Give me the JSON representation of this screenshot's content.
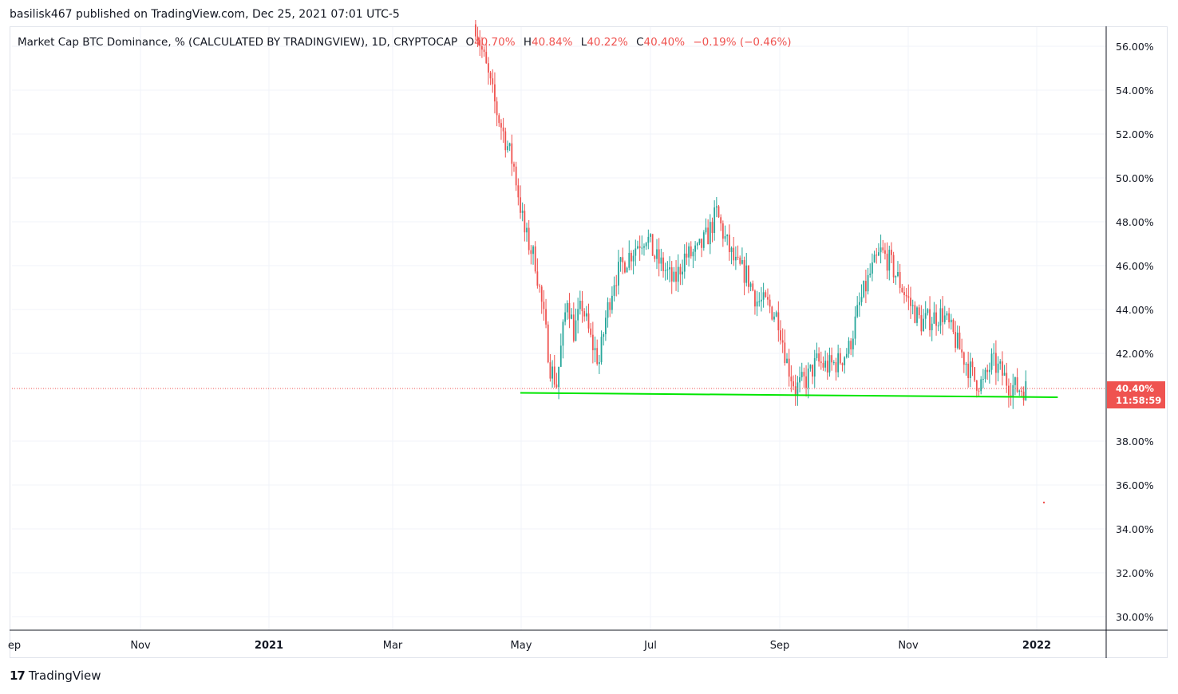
{
  "header": {
    "publisher_line": "basilisk467 published on TradingView.com, Dec 25, 2021 07:01 UTC-5"
  },
  "legend": {
    "symbol": "Market Cap BTC Dominance, % (CALCULATED BY TRADINGVIEW), 1D, CRYPTOCAP",
    "o_label": "O",
    "o_value": "40.70%",
    "h_label": "H",
    "h_value": "40.84%",
    "l_label": "L",
    "l_value": "40.22%",
    "c_label": "C",
    "c_value": "40.40%",
    "change": "−0.19% (−0.46%)"
  },
  "price_label": {
    "price": "40.40%",
    "countdown": "11:58:59"
  },
  "footer": {
    "brand": "TradingView"
  },
  "colors": {
    "up": "#26a69a",
    "down": "#ef5350",
    "support_line": "#00e600",
    "grid": "#f0f3fa",
    "last_price": "#ef5350"
  },
  "chart_data": {
    "type": "candlestick",
    "x_axis": {
      "tick_labels": [
        "ep",
        "Nov",
        "2021",
        "Mar",
        "May",
        "Jul",
        "Sep",
        "Nov",
        "2022"
      ]
    },
    "y_axis": {
      "tick_labels": [
        "56.00%",
        "54.00%",
        "52.00%",
        "50.00%",
        "48.00%",
        "46.00%",
        "44.00%",
        "42.00%",
        "38.00%",
        "36.00%",
        "34.00%",
        "32.00%",
        "30.00%"
      ],
      "range": [
        29.0,
        57.0
      ],
      "unit": "%"
    },
    "series": [
      {
        "type": "candlestick",
        "interval": "1D",
        "x_range": [
          "2021-04-10",
          "2021-12-25"
        ],
        "close_path": [
          [
            "2021-04-10",
            57.0
          ],
          [
            "2021-04-20",
            53.0
          ],
          [
            "2021-04-28",
            50.5
          ],
          [
            "2021-05-03",
            47.5
          ],
          [
            "2021-05-08",
            46.2
          ],
          [
            "2021-05-12",
            43.6
          ],
          [
            "2021-05-15",
            41.4
          ],
          [
            "2021-05-18",
            40.6
          ],
          [
            "2021-05-20",
            42.2
          ],
          [
            "2021-05-23",
            44.6
          ],
          [
            "2021-05-26",
            43.0
          ],
          [
            "2021-05-30",
            44.2
          ],
          [
            "2021-06-03",
            42.6
          ],
          [
            "2021-06-07",
            41.6
          ],
          [
            "2021-06-10",
            43.6
          ],
          [
            "2021-06-14",
            45.4
          ],
          [
            "2021-06-19",
            46.2
          ],
          [
            "2021-06-25",
            47.0
          ],
          [
            "2021-06-29",
            47.4
          ],
          [
            "2021-07-03",
            46.4
          ],
          [
            "2021-07-08",
            45.8
          ],
          [
            "2021-07-12",
            45.2
          ],
          [
            "2021-07-17",
            46.4
          ],
          [
            "2021-07-23",
            46.6
          ],
          [
            "2021-07-28",
            47.4
          ],
          [
            "2021-08-01",
            48.4
          ],
          [
            "2021-08-05",
            47.2
          ],
          [
            "2021-08-10",
            46.0
          ],
          [
            "2021-08-15",
            45.6
          ],
          [
            "2021-08-20",
            44.4
          ],
          [
            "2021-08-25",
            44.2
          ],
          [
            "2021-08-30",
            43.6
          ],
          [
            "2021-09-03",
            41.6
          ],
          [
            "2021-09-07",
            40.4
          ],
          [
            "2021-09-12",
            40.8
          ],
          [
            "2021-09-17",
            41.6
          ],
          [
            "2021-09-22",
            41.4
          ],
          [
            "2021-09-27",
            41.6
          ],
          [
            "2021-10-02",
            42.2
          ],
          [
            "2021-10-07",
            44.2
          ],
          [
            "2021-10-12",
            45.6
          ],
          [
            "2021-10-17",
            46.6
          ],
          [
            "2021-10-21",
            46.2
          ],
          [
            "2021-10-26",
            45.2
          ],
          [
            "2021-10-31",
            44.2
          ],
          [
            "2021-11-05",
            43.4
          ],
          [
            "2021-11-10",
            43.6
          ],
          [
            "2021-11-15",
            43.8
          ],
          [
            "2021-11-20",
            42.8
          ],
          [
            "2021-11-25",
            41.8
          ],
          [
            "2021-11-30",
            40.8
          ],
          [
            "2021-12-04",
            40.6
          ],
          [
            "2021-12-08",
            41.6
          ],
          [
            "2021-12-12",
            41.2
          ],
          [
            "2021-12-16",
            40.6
          ],
          [
            "2021-12-20",
            40.4
          ],
          [
            "2021-12-25",
            40.4
          ]
        ]
      }
    ],
    "annotations": [
      {
        "type": "trend_line",
        "from": [
          "2021-05-01",
          40.2
        ],
        "to": [
          "2022-01-08",
          40.0
        ]
      },
      {
        "type": "horizontal_dotted",
        "value": 40.4
      }
    ],
    "grid": true,
    "last_value": 40.4
  }
}
